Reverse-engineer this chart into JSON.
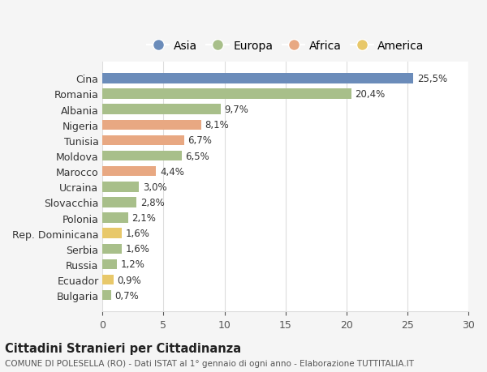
{
  "countries": [
    "Bulgaria",
    "Ecuador",
    "Russia",
    "Serbia",
    "Rep. Dominicana",
    "Polonia",
    "Slovacchia",
    "Ucraina",
    "Marocco",
    "Moldova",
    "Tunisia",
    "Nigeria",
    "Albania",
    "Romania",
    "Cina"
  ],
  "values": [
    0.7,
    0.9,
    1.2,
    1.6,
    1.6,
    2.1,
    2.8,
    3.0,
    4.4,
    6.5,
    6.7,
    8.1,
    9.7,
    20.4,
    25.5
  ],
  "labels": [
    "0,7%",
    "0,9%",
    "1,2%",
    "1,6%",
    "1,6%",
    "2,1%",
    "2,8%",
    "3,0%",
    "4,4%",
    "6,5%",
    "6,7%",
    "8,1%",
    "9,7%",
    "20,4%",
    "25,5%"
  ],
  "continents": [
    "Europa",
    "America",
    "Europa",
    "Europa",
    "America",
    "Europa",
    "Europa",
    "Europa",
    "Africa",
    "Europa",
    "Africa",
    "Africa",
    "Europa",
    "Europa",
    "Asia"
  ],
  "colors": {
    "Asia": "#6b8cba",
    "Europa": "#a8bf8a",
    "Africa": "#e8a882",
    "America": "#e8c86a"
  },
  "legend_order": [
    "Asia",
    "Europa",
    "Africa",
    "America"
  ],
  "title1": "Cittadini Stranieri per Cittadinanza",
  "title2": "COMUNE DI POLESELLA (RO) - Dati ISTAT al 1° gennaio di ogni anno - Elaborazione TUTTITALIA.IT",
  "xlim": [
    0,
    30
  ],
  "xticks": [
    0,
    5,
    10,
    15,
    20,
    25,
    30
  ],
  "bg_color": "#f5f5f5",
  "plot_bg_color": "#ffffff",
  "grid_color": "#dddddd"
}
